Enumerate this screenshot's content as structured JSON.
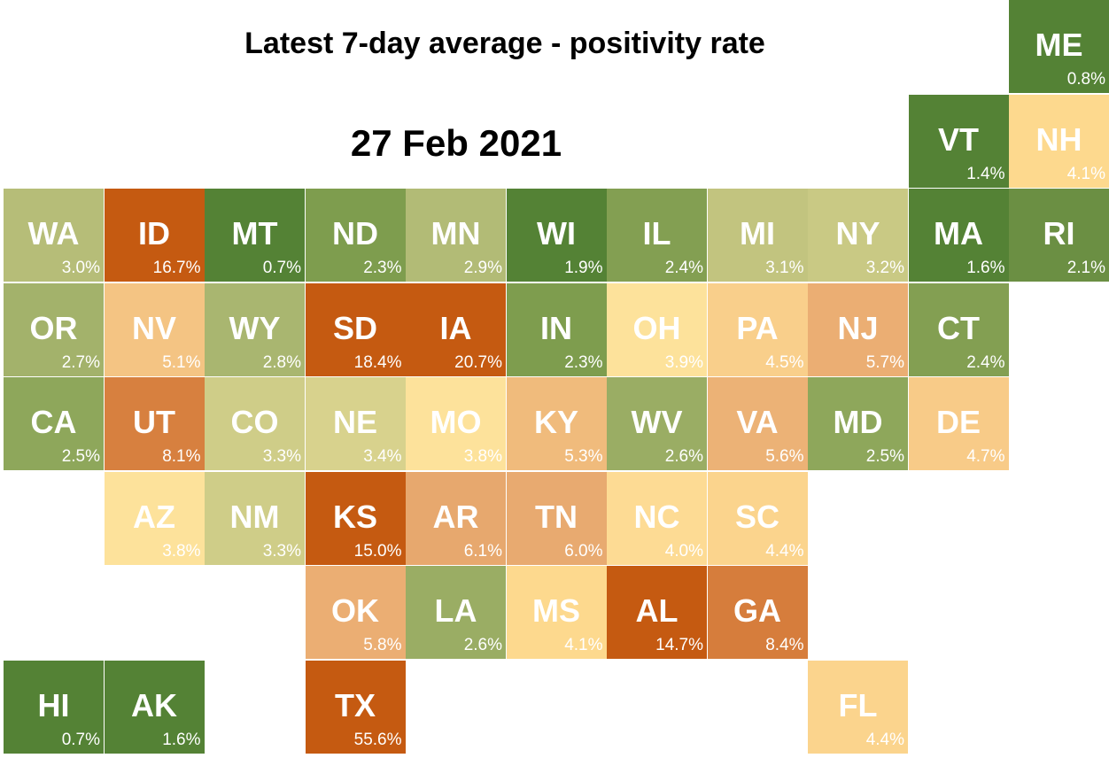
{
  "title": "Latest 7-day average - positivity rate",
  "date": "27 Feb 2021",
  "tiles": [
    {
      "abbr": "ME",
      "rate": "0.8%",
      "row": 0,
      "col": 10,
      "color": "#548235"
    },
    {
      "abbr": "VT",
      "rate": "1.4%",
      "row": 1,
      "col": 9,
      "color": "#548235"
    },
    {
      "abbr": "NH",
      "rate": "4.1%",
      "row": 1,
      "col": 10,
      "color": "#fdd98e"
    },
    {
      "abbr": "WA",
      "rate": "3.0%",
      "row": 2,
      "col": 0,
      "color": "#b6bd78"
    },
    {
      "abbr": "ID",
      "rate": "16.7%",
      "row": 2,
      "col": 1,
      "color": "#c55a11"
    },
    {
      "abbr": "MT",
      "rate": "0.7%",
      "row": 2,
      "col": 2,
      "color": "#548235"
    },
    {
      "abbr": "ND",
      "rate": "2.3%",
      "row": 2,
      "col": 3,
      "color": "#7e9d4e"
    },
    {
      "abbr": "MN",
      "rate": "2.9%",
      "row": 2,
      "col": 4,
      "color": "#b2bb76"
    },
    {
      "abbr": "WI",
      "rate": "1.9%",
      "row": 2,
      "col": 5,
      "color": "#548235"
    },
    {
      "abbr": "IL",
      "rate": "2.4%",
      "row": 2,
      "col": 6,
      "color": "#839f52"
    },
    {
      "abbr": "MI",
      "rate": "3.1%",
      "row": 2,
      "col": 7,
      "color": "#c2c47f"
    },
    {
      "abbr": "NY",
      "rate": "3.2%",
      "row": 2,
      "col": 8,
      "color": "#c9c984"
    },
    {
      "abbr": "MA",
      "rate": "1.6%",
      "row": 2,
      "col": 9,
      "color": "#548235"
    },
    {
      "abbr": "RI",
      "rate": "2.1%",
      "row": 2,
      "col": 10,
      "color": "#6b8f43"
    },
    {
      "abbr": "OR",
      "rate": "2.7%",
      "row": 3,
      "col": 0,
      "color": "#a3b26b"
    },
    {
      "abbr": "NV",
      "rate": "5.1%",
      "row": 3,
      "col": 1,
      "color": "#f4c483"
    },
    {
      "abbr": "WY",
      "rate": "2.8%",
      "row": 3,
      "col": 2,
      "color": "#a9b670"
    },
    {
      "abbr": "SD",
      "rate": "18.4%",
      "row": 3,
      "col": 3,
      "color": "#c55a11"
    },
    {
      "abbr": "IA",
      "rate": "20.7%",
      "row": 3,
      "col": 4,
      "color": "#c55a11"
    },
    {
      "abbr": "IN",
      "rate": "2.3%",
      "row": 3,
      "col": 5,
      "color": "#7e9d4e"
    },
    {
      "abbr": "OH",
      "rate": "3.9%",
      "row": 3,
      "col": 6,
      "color": "#fde29b"
    },
    {
      "abbr": "PA",
      "rate": "4.5%",
      "row": 3,
      "col": 7,
      "color": "#f9cf8b"
    },
    {
      "abbr": "NJ",
      "rate": "5.7%",
      "row": 3,
      "col": 8,
      "color": "#ebae73"
    },
    {
      "abbr": "CT",
      "rate": "2.4%",
      "row": 3,
      "col": 9,
      "color": "#839f52"
    },
    {
      "abbr": "CA",
      "rate": "2.5%",
      "row": 4,
      "col": 0,
      "color": "#8ea75b"
    },
    {
      "abbr": "UT",
      "rate": "8.1%",
      "row": 4,
      "col": 1,
      "color": "#d7803f"
    },
    {
      "abbr": "CO",
      "rate": "3.3%",
      "row": 4,
      "col": 2,
      "color": "#cfcd88"
    },
    {
      "abbr": "NE",
      "rate": "3.4%",
      "row": 4,
      "col": 3,
      "color": "#d8d28d"
    },
    {
      "abbr": "MO",
      "rate": "3.8%",
      "row": 4,
      "col": 4,
      "color": "#fde29b"
    },
    {
      "abbr": "KY",
      "rate": "5.3%",
      "row": 4,
      "col": 5,
      "color": "#f0bb7c"
    },
    {
      "abbr": "WV",
      "rate": "2.6%",
      "row": 4,
      "col": 6,
      "color": "#9aad64"
    },
    {
      "abbr": "VA",
      "rate": "5.6%",
      "row": 4,
      "col": 7,
      "color": "#ecb276"
    },
    {
      "abbr": "MD",
      "rate": "2.5%",
      "row": 4,
      "col": 8,
      "color": "#8ea75b"
    },
    {
      "abbr": "DE",
      "rate": "4.7%",
      "row": 4,
      "col": 9,
      "color": "#f8cb88"
    },
    {
      "abbr": "AZ",
      "rate": "3.8%",
      "row": 5,
      "col": 1,
      "color": "#fde29b"
    },
    {
      "abbr": "NM",
      "rate": "3.3%",
      "row": 5,
      "col": 2,
      "color": "#cfcd88"
    },
    {
      "abbr": "KS",
      "rate": "15.0%",
      "row": 5,
      "col": 3,
      "color": "#c55a11"
    },
    {
      "abbr": "AR",
      "rate": "6.1%",
      "row": 5,
      "col": 4,
      "color": "#e7a86e"
    },
    {
      "abbr": "TN",
      "rate": "6.0%",
      "row": 5,
      "col": 5,
      "color": "#e8aa70"
    },
    {
      "abbr": "NC",
      "rate": "4.0%",
      "row": 5,
      "col": 6,
      "color": "#fddb94"
    },
    {
      "abbr": "SC",
      "rate": "4.4%",
      "row": 5,
      "col": 7,
      "color": "#fbd48d"
    },
    {
      "abbr": "OK",
      "rate": "5.8%",
      "row": 6,
      "col": 3,
      "color": "#ebae73"
    },
    {
      "abbr": "LA",
      "rate": "2.6%",
      "row": 6,
      "col": 4,
      "color": "#9aad64"
    },
    {
      "abbr": "MS",
      "rate": "4.1%",
      "row": 6,
      "col": 5,
      "color": "#fdd98e"
    },
    {
      "abbr": "AL",
      "rate": "14.7%",
      "row": 6,
      "col": 6,
      "color": "#c55a11"
    },
    {
      "abbr": "GA",
      "rate": "8.4%",
      "row": 6,
      "col": 7,
      "color": "#d67d3c"
    },
    {
      "abbr": "HI",
      "rate": "0.7%",
      "row": 7,
      "col": 0,
      "color": "#548235"
    },
    {
      "abbr": "AK",
      "rate": "1.6%",
      "row": 7,
      "col": 1,
      "color": "#548235"
    },
    {
      "abbr": "TX",
      "rate": "55.6%",
      "row": 7,
      "col": 3,
      "color": "#c55a11"
    },
    {
      "abbr": "FL",
      "rate": "4.4%",
      "row": 7,
      "col": 8,
      "color": "#fbd48d"
    }
  ]
}
